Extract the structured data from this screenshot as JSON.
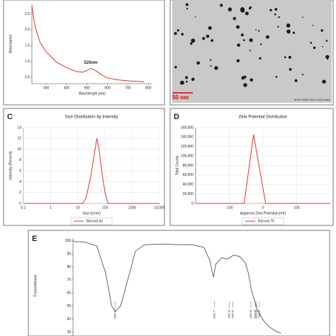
{
  "chart_data": [
    {
      "type": "line",
      "ylabel": "Absorbance",
      "xlabel": "Wavelength (nm)",
      "annotation": "520nm",
      "color": "#e03030",
      "x": [
        230,
        240,
        250,
        270,
        300,
        350,
        400,
        450,
        480,
        500,
        520,
        540,
        570,
        600,
        650,
        700,
        750,
        780
      ],
      "values": [
        2.75,
        2.3,
        2.0,
        1.6,
        1.3,
        0.98,
        0.8,
        0.68,
        0.66,
        0.72,
        0.78,
        0.72,
        0.58,
        0.48,
        0.42,
        0.39,
        0.37,
        0.36
      ],
      "xlim": [
        230,
        820
      ],
      "xticks": [
        300,
        400,
        500,
        600,
        700,
        800
      ],
      "ylim": [
        0.3,
        2.8
      ],
      "yticks": [
        0.5,
        {
          "value": 1,
          "label": "1.0"
        },
        1.5,
        {
          "value": 2,
          "label": "2.0"
        },
        2.5
      ],
      "grid": false
    },
    {
      "type": "line",
      "label": "C",
      "title": "Size Distribution by Intensity",
      "xlabel": "Size (d.nm)",
      "ylabel": "Intensity (Percent)",
      "xscale": "log",
      "x": [
        0.1,
        10,
        15,
        20,
        30,
        40,
        50,
        60,
        80,
        100,
        130,
        200,
        10000
      ],
      "series": [
        {
          "name": "Record 42",
          "color": "#e03030",
          "values": [
            0,
            0,
            0,
            1,
            5,
            9,
            12,
            10,
            5,
            2,
            0,
            0,
            0
          ]
        }
      ],
      "xlim": [
        0.1,
        10000
      ],
      "xticks": [
        0.1,
        1,
        10,
        100,
        1000,
        {
          "value": 10000,
          "label": "10,000"
        }
      ],
      "ylim": [
        0,
        14
      ],
      "yticks": [
        0,
        2,
        4,
        6,
        8,
        10,
        12,
        14
      ],
      "grid": true
    },
    {
      "type": "line",
      "label": "D",
      "title": "Zeta Potential Distribution",
      "xlabel": "Apparent Zeta Potential (mV)",
      "ylabel": "Total Counts",
      "x": [
        -200,
        -56,
        -28,
        8,
        200
      ],
      "series": [
        {
          "name": "Record 76",
          "color": "#e03030",
          "values": [
            0,
            0,
            145000,
            0,
            0
          ]
        }
      ],
      "xlim": [
        -200,
        200
      ],
      "xticks": [
        -100,
        0,
        100
      ],
      "ylim": [
        0,
        160000
      ],
      "yticks": [
        0,
        {
          "value": 20000,
          "label": "20,000"
        },
        {
          "value": 40000,
          "label": "40,000"
        },
        {
          "value": 60000,
          "label": "60,000"
        },
        {
          "value": 80000,
          "label": "80,000"
        },
        {
          "value": 100000,
          "label": "100,000"
        },
        {
          "value": 120000,
          "label": "120,000"
        },
        {
          "value": 140000,
          "label": "140,000"
        },
        {
          "value": 160000,
          "label": "160,000"
        }
      ],
      "grid": true
    },
    {
      "type": "line",
      "label": "E",
      "ylabel": "Transmittance",
      "color": "#666666",
      "x": [
        4000,
        3800,
        3600,
        3450,
        3350,
        3286.87,
        3200,
        3050,
        2950,
        2800,
        2500,
        2200,
        2000,
        1800,
        1700,
        1638.77,
        1600,
        1500,
        1405.16,
        1300,
        1200,
        1100,
        1050,
        1000,
        900,
        800,
        700,
        600,
        500
      ],
      "values": [
        99.5,
        99,
        96,
        75,
        50,
        46,
        50,
        75,
        92,
        97,
        97.5,
        97,
        97,
        95,
        85,
        72,
        82,
        87,
        86,
        89,
        88,
        83,
        75,
        62,
        47,
        39,
        34,
        31,
        29
      ],
      "xlim": [
        4000,
        400
      ],
      "ylim": [
        27,
        102
      ],
      "yticks": [
        30,
        40,
        50,
        60,
        70,
        80,
        90,
        100
      ],
      "grid": false,
      "peaks": [
        3286.87,
        1638.77,
        1405.16,
        1365.23,
        1080.25,
        1024.09,
        1019.08,
        990.21
      ]
    }
  ],
  "panel_b": {
    "scale_bar": "50 nm",
    "caption": "80 kV  X4000  1024 X 1024 pixels"
  }
}
